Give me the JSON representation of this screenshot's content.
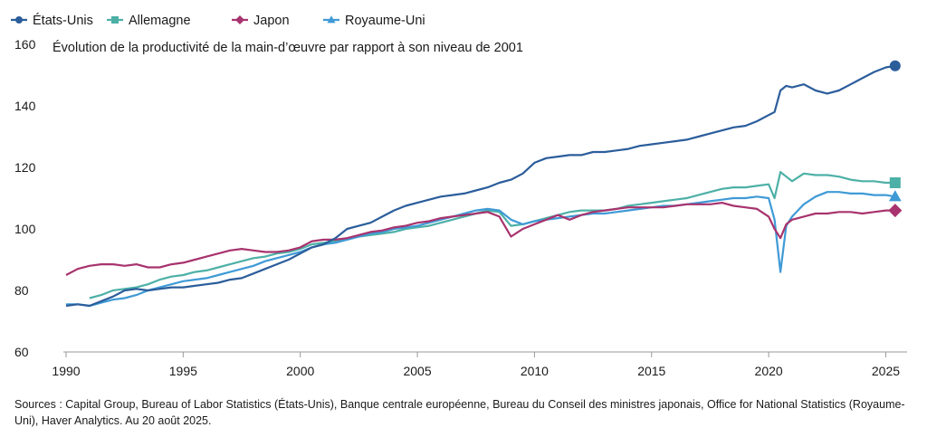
{
  "chart_data": {
    "type": "line",
    "title": "Évolution de la productivité de la main-d’œuvre par rapport à son niveau de 2001",
    "xlabel": "",
    "ylabel": "",
    "xlim": [
      1990,
      2025.6
    ],
    "ylim": [
      60,
      160
    ],
    "x_ticks": [
      1990,
      1995,
      2000,
      2005,
      2010,
      2015,
      2020,
      2025
    ],
    "y_ticks": [
      60,
      80,
      100,
      120,
      140,
      160
    ],
    "legend_position": "top-left",
    "series": [
      {
        "name": "États-Unis",
        "color": "#2b5d9b",
        "marker": "circle",
        "points": [
          [
            1990,
            75
          ],
          [
            1990.5,
            75.5
          ],
          [
            1991,
            75
          ],
          [
            1991.5,
            76.5
          ],
          [
            1992,
            78
          ],
          [
            1992.5,
            80
          ],
          [
            1993,
            80.5
          ],
          [
            1993.5,
            80
          ],
          [
            1994,
            80.5
          ],
          [
            1994.5,
            81
          ],
          [
            1995,
            81
          ],
          [
            1995.5,
            81.5
          ],
          [
            1996,
            82
          ],
          [
            1996.5,
            82.5
          ],
          [
            1997,
            83.5
          ],
          [
            1997.5,
            84
          ],
          [
            1998,
            85.5
          ],
          [
            1998.5,
            87
          ],
          [
            1999,
            88.5
          ],
          [
            1999.5,
            90
          ],
          [
            2000,
            92
          ],
          [
            2000.5,
            94
          ],
          [
            2001,
            95
          ],
          [
            2001.5,
            97
          ],
          [
            2002,
            100
          ],
          [
            2002.5,
            101
          ],
          [
            2003,
            102
          ],
          [
            2003.5,
            104
          ],
          [
            2004,
            106
          ],
          [
            2004.5,
            107.5
          ],
          [
            2005,
            108.5
          ],
          [
            2005.5,
            109.5
          ],
          [
            2006,
            110.5
          ],
          [
            2006.5,
            111
          ],
          [
            2007,
            111.5
          ],
          [
            2007.5,
            112.5
          ],
          [
            2008,
            113.5
          ],
          [
            2008.5,
            115
          ],
          [
            2009,
            116
          ],
          [
            2009.5,
            118
          ],
          [
            2010,
            121.5
          ],
          [
            2010.5,
            123
          ],
          [
            2011,
            123.5
          ],
          [
            2011.5,
            124
          ],
          [
            2012,
            124
          ],
          [
            2012.5,
            125
          ],
          [
            2013,
            125
          ],
          [
            2013.5,
            125.5
          ],
          [
            2014,
            126
          ],
          [
            2014.5,
            127
          ],
          [
            2015,
            127.5
          ],
          [
            2015.5,
            128
          ],
          [
            2016,
            128.5
          ],
          [
            2016.5,
            129
          ],
          [
            2017,
            130
          ],
          [
            2017.5,
            131
          ],
          [
            2018,
            132
          ],
          [
            2018.5,
            133
          ],
          [
            2019,
            133.5
          ],
          [
            2019.5,
            135
          ],
          [
            2020,
            137
          ],
          [
            2020.25,
            138
          ],
          [
            2020.5,
            145
          ],
          [
            2020.75,
            146.5
          ],
          [
            2021,
            146
          ],
          [
            2021.5,
            147
          ],
          [
            2022,
            145
          ],
          [
            2022.5,
            144
          ],
          [
            2023,
            145
          ],
          [
            2023.5,
            147
          ],
          [
            2024,
            149
          ],
          [
            2024.5,
            151
          ],
          [
            2025,
            152.5
          ],
          [
            2025.4,
            153
          ]
        ]
      },
      {
        "name": "Allemagne",
        "color": "#4db0a7",
        "marker": "square",
        "points": [
          [
            1991,
            77.5
          ],
          [
            1991.5,
            78.5
          ],
          [
            1992,
            80
          ],
          [
            1992.5,
            80.5
          ],
          [
            1993,
            81
          ],
          [
            1993.5,
            82
          ],
          [
            1994,
            83.5
          ],
          [
            1994.5,
            84.5
          ],
          [
            1995,
            85
          ],
          [
            1995.5,
            86
          ],
          [
            1996,
            86.5
          ],
          [
            1996.5,
            87.5
          ],
          [
            1997,
            88.5
          ],
          [
            1997.5,
            89.5
          ],
          [
            1998,
            90.5
          ],
          [
            1998.5,
            91
          ],
          [
            1999,
            92
          ],
          [
            1999.5,
            92.5
          ],
          [
            2000,
            93.5
          ],
          [
            2000.5,
            95
          ],
          [
            2001,
            95.5
          ],
          [
            2001.5,
            96
          ],
          [
            2002,
            97
          ],
          [
            2002.5,
            97.5
          ],
          [
            2003,
            98
          ],
          [
            2003.5,
            98.5
          ],
          [
            2004,
            99
          ],
          [
            2004.5,
            100
          ],
          [
            2005,
            100.5
          ],
          [
            2005.5,
            101
          ],
          [
            2006,
            102
          ],
          [
            2006.5,
            103
          ],
          [
            2007,
            104
          ],
          [
            2007.5,
            105
          ],
          [
            2008,
            106
          ],
          [
            2008.5,
            105.5
          ],
          [
            2009,
            101
          ],
          [
            2009.5,
            101.5
          ],
          [
            2010,
            102.5
          ],
          [
            2010.5,
            103.5
          ],
          [
            2011,
            104.5
          ],
          [
            2011.5,
            105.5
          ],
          [
            2012,
            106
          ],
          [
            2012.5,
            106
          ],
          [
            2013,
            106
          ],
          [
            2013.5,
            106.5
          ],
          [
            2014,
            107.5
          ],
          [
            2014.5,
            108
          ],
          [
            2015,
            108.5
          ],
          [
            2015.5,
            109
          ],
          [
            2016,
            109.5
          ],
          [
            2016.5,
            110
          ],
          [
            2017,
            111
          ],
          [
            2017.5,
            112
          ],
          [
            2018,
            113
          ],
          [
            2018.5,
            113.5
          ],
          [
            2019,
            113.5
          ],
          [
            2019.5,
            114
          ],
          [
            2020,
            114.5
          ],
          [
            2020.25,
            110
          ],
          [
            2020.5,
            118.5
          ],
          [
            2020.75,
            117
          ],
          [
            2021,
            115.5
          ],
          [
            2021.5,
            118
          ],
          [
            2022,
            117.5
          ],
          [
            2022.5,
            117.5
          ],
          [
            2023,
            117
          ],
          [
            2023.5,
            116
          ],
          [
            2024,
            115.5
          ],
          [
            2024.5,
            115.5
          ],
          [
            2025,
            115
          ],
          [
            2025.4,
            115
          ]
        ]
      },
      {
        "name": "Japon",
        "color": "#a8336e",
        "marker": "diamond",
        "points": [
          [
            1990,
            85
          ],
          [
            1990.5,
            87
          ],
          [
            1991,
            88
          ],
          [
            1991.5,
            88.5
          ],
          [
            1992,
            88.5
          ],
          [
            1992.5,
            88
          ],
          [
            1993,
            88.5
          ],
          [
            1993.5,
            87.5
          ],
          [
            1994,
            87.5
          ],
          [
            1994.5,
            88.5
          ],
          [
            1995,
            89
          ],
          [
            1995.5,
            90
          ],
          [
            1996,
            91
          ],
          [
            1996.5,
            92
          ],
          [
            1997,
            93
          ],
          [
            1997.5,
            93.5
          ],
          [
            1998,
            93
          ],
          [
            1998.5,
            92.5
          ],
          [
            1999,
            92.5
          ],
          [
            1999.5,
            93
          ],
          [
            2000,
            94
          ],
          [
            2000.5,
            96
          ],
          [
            2001,
            96.5
          ],
          [
            2001.5,
            96.5
          ],
          [
            2002,
            97
          ],
          [
            2002.5,
            98
          ],
          [
            2003,
            99
          ],
          [
            2003.5,
            99.5
          ],
          [
            2004,
            100.5
          ],
          [
            2004.5,
            101
          ],
          [
            2005,
            102
          ],
          [
            2005.5,
            102.5
          ],
          [
            2006,
            103.5
          ],
          [
            2006.5,
            104
          ],
          [
            2007,
            104.5
          ],
          [
            2007.5,
            105
          ],
          [
            2008,
            105.5
          ],
          [
            2008.5,
            104
          ],
          [
            2009,
            97.5
          ],
          [
            2009.5,
            100
          ],
          [
            2010,
            101.5
          ],
          [
            2010.5,
            103
          ],
          [
            2011,
            104.5
          ],
          [
            2011.5,
            103
          ],
          [
            2012,
            104.5
          ],
          [
            2012.5,
            105.5
          ],
          [
            2013,
            106
          ],
          [
            2013.5,
            106.5
          ],
          [
            2014,
            107
          ],
          [
            2014.5,
            107
          ],
          [
            2015,
            107
          ],
          [
            2015.5,
            107
          ],
          [
            2016,
            107.5
          ],
          [
            2016.5,
            108
          ],
          [
            2017,
            108
          ],
          [
            2017.5,
            108
          ],
          [
            2018,
            108.5
          ],
          [
            2018.5,
            107.5
          ],
          [
            2019,
            107
          ],
          [
            2019.5,
            106.5
          ],
          [
            2020,
            104
          ],
          [
            2020.25,
            100
          ],
          [
            2020.5,
            97
          ],
          [
            2020.75,
            101.5
          ],
          [
            2021,
            103
          ],
          [
            2021.5,
            104
          ],
          [
            2022,
            105
          ],
          [
            2022.5,
            105
          ],
          [
            2023,
            105.5
          ],
          [
            2023.5,
            105.5
          ],
          [
            2024,
            105
          ],
          [
            2024.5,
            105.5
          ],
          [
            2025,
            106
          ],
          [
            2025.4,
            106
          ]
        ]
      },
      {
        "name": "Royaume-Uni",
        "color": "#3f9ad6",
        "marker": "triangle",
        "points": [
          [
            1990,
            75.5
          ],
          [
            1990.5,
            75.5
          ],
          [
            1991,
            75
          ],
          [
            1991.5,
            76
          ],
          [
            1992,
            77
          ],
          [
            1992.5,
            77.5
          ],
          [
            1993,
            78.5
          ],
          [
            1993.5,
            80
          ],
          [
            1994,
            81
          ],
          [
            1994.5,
            82
          ],
          [
            1995,
            83
          ],
          [
            1995.5,
            83.5
          ],
          [
            1996,
            84
          ],
          [
            1996.5,
            85
          ],
          [
            1997,
            86
          ],
          [
            1997.5,
            87
          ],
          [
            1998,
            88
          ],
          [
            1998.5,
            89.5
          ],
          [
            1999,
            90.5
          ],
          [
            1999.5,
            91.5
          ],
          [
            2000,
            92.5
          ],
          [
            2000.5,
            94
          ],
          [
            2001,
            95
          ],
          [
            2001.5,
            95.5
          ],
          [
            2002,
            96.5
          ],
          [
            2002.5,
            97.5
          ],
          [
            2003,
            98.5
          ],
          [
            2003.5,
            99
          ],
          [
            2004,
            100
          ],
          [
            2004.5,
            100.5
          ],
          [
            2005,
            101
          ],
          [
            2005.5,
            102
          ],
          [
            2006,
            103
          ],
          [
            2006.5,
            104
          ],
          [
            2007,
            105
          ],
          [
            2007.5,
            106
          ],
          [
            2008,
            106.5
          ],
          [
            2008.5,
            106
          ],
          [
            2009,
            103
          ],
          [
            2009.5,
            101.5
          ],
          [
            2010,
            102.5
          ],
          [
            2010.5,
            103
          ],
          [
            2011,
            103.5
          ],
          [
            2011.5,
            104
          ],
          [
            2012,
            104.5
          ],
          [
            2012.5,
            105
          ],
          [
            2013,
            105
          ],
          [
            2013.5,
            105.5
          ],
          [
            2014,
            106
          ],
          [
            2014.5,
            106.5
          ],
          [
            2015,
            107
          ],
          [
            2015.5,
            107.5
          ],
          [
            2016,
            107.5
          ],
          [
            2016.5,
            108
          ],
          [
            2017,
            108.5
          ],
          [
            2017.5,
            109
          ],
          [
            2018,
            109.5
          ],
          [
            2018.5,
            110
          ],
          [
            2019,
            110
          ],
          [
            2019.5,
            110.5
          ],
          [
            2020,
            110
          ],
          [
            2020.25,
            103
          ],
          [
            2020.5,
            86
          ],
          [
            2020.75,
            101
          ],
          [
            2021,
            104
          ],
          [
            2021.5,
            108
          ],
          [
            2022,
            110.5
          ],
          [
            2022.5,
            112
          ],
          [
            2023,
            112
          ],
          [
            2023.5,
            111.5
          ],
          [
            2024,
            111.5
          ],
          [
            2024.5,
            111
          ],
          [
            2025,
            111
          ],
          [
            2025.4,
            110.5
          ]
        ]
      }
    ]
  },
  "source_text": "Sources : Capital Group, Bureau of Labor Statistics (États-Unis), Banque centrale européenne, Bureau du Conseil des ministres japonais, Office for National Statistics (Royaume-Uni), Haver Analytics. Au 20 août 2025."
}
